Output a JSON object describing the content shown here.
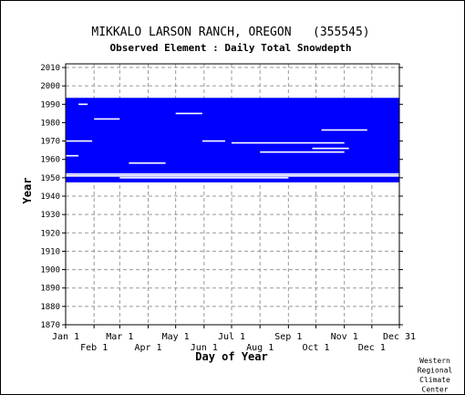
{
  "chart_data": {
    "type": "heatmap",
    "title": "MIKKALO LARSON RANCH, OREGON   (355545)",
    "subtitle": "Observed Element : Daily Total Snowdepth",
    "xlabel": "Day of Year",
    "ylabel": "Year",
    "xlim": [
      1,
      365
    ],
    "ylim": [
      1870,
      2012
    ],
    "x_ticks_top": [
      "Jan 1",
      "Mar 1",
      "May 1",
      "Jul 1",
      "Sep 1",
      "Nov 1",
      "Dec 31"
    ],
    "x_ticks_top_days": [
      1,
      60,
      121,
      182,
      244,
      305,
      365
    ],
    "x_ticks_bottom": [
      "Feb 1",
      "Apr 1",
      "Jun 1",
      "Aug 1",
      "Oct 1",
      "Dec 1"
    ],
    "x_ticks_bottom_days": [
      32,
      91,
      152,
      213,
      274,
      335
    ],
    "y_ticks": [
      1870,
      1880,
      1890,
      1900,
      1910,
      1920,
      1930,
      1940,
      1950,
      1960,
      1970,
      1980,
      1990,
      2000,
      2010
    ],
    "grid": true,
    "data_color": "#0000ff",
    "coverage_note": "Observations present roughly 1948-1993 with scattered gaps",
    "observed_blocks": [
      {
        "year_start": 1948,
        "year_end": 1951,
        "day_start": 1,
        "day_end": 365
      },
      {
        "year_start": 1952,
        "year_end": 1993,
        "day_start": 1,
        "day_end": 365
      }
    ],
    "gaps": [
      {
        "year": 1951,
        "day_start": 1,
        "day_end": 365
      },
      {
        "year": 1952,
        "day_start": 1,
        "day_end": 365
      },
      {
        "year": 1950,
        "day_start": 60,
        "day_end": 244
      },
      {
        "year": 1985,
        "day_start": 121,
        "day_end": 150
      },
      {
        "year": 1982,
        "day_start": 32,
        "day_end": 60
      },
      {
        "year": 1970,
        "day_start": 1,
        "day_end": 30
      },
      {
        "year": 1970,
        "day_start": 150,
        "day_end": 175
      },
      {
        "year": 1969,
        "day_start": 182,
        "day_end": 305
      },
      {
        "year": 1964,
        "day_start": 213,
        "day_end": 305
      },
      {
        "year": 1958,
        "day_start": 70,
        "day_end": 110
      },
      {
        "year": 1976,
        "day_start": 280,
        "day_end": 330
      },
      {
        "year": 1966,
        "day_start": 270,
        "day_end": 310
      },
      {
        "year": 1990,
        "day_start": 15,
        "day_end": 25
      },
      {
        "year": 1962,
        "day_start": 1,
        "day_end": 15
      }
    ],
    "credit": [
      "Western",
      "Regional",
      "Climate",
      "Center"
    ]
  }
}
